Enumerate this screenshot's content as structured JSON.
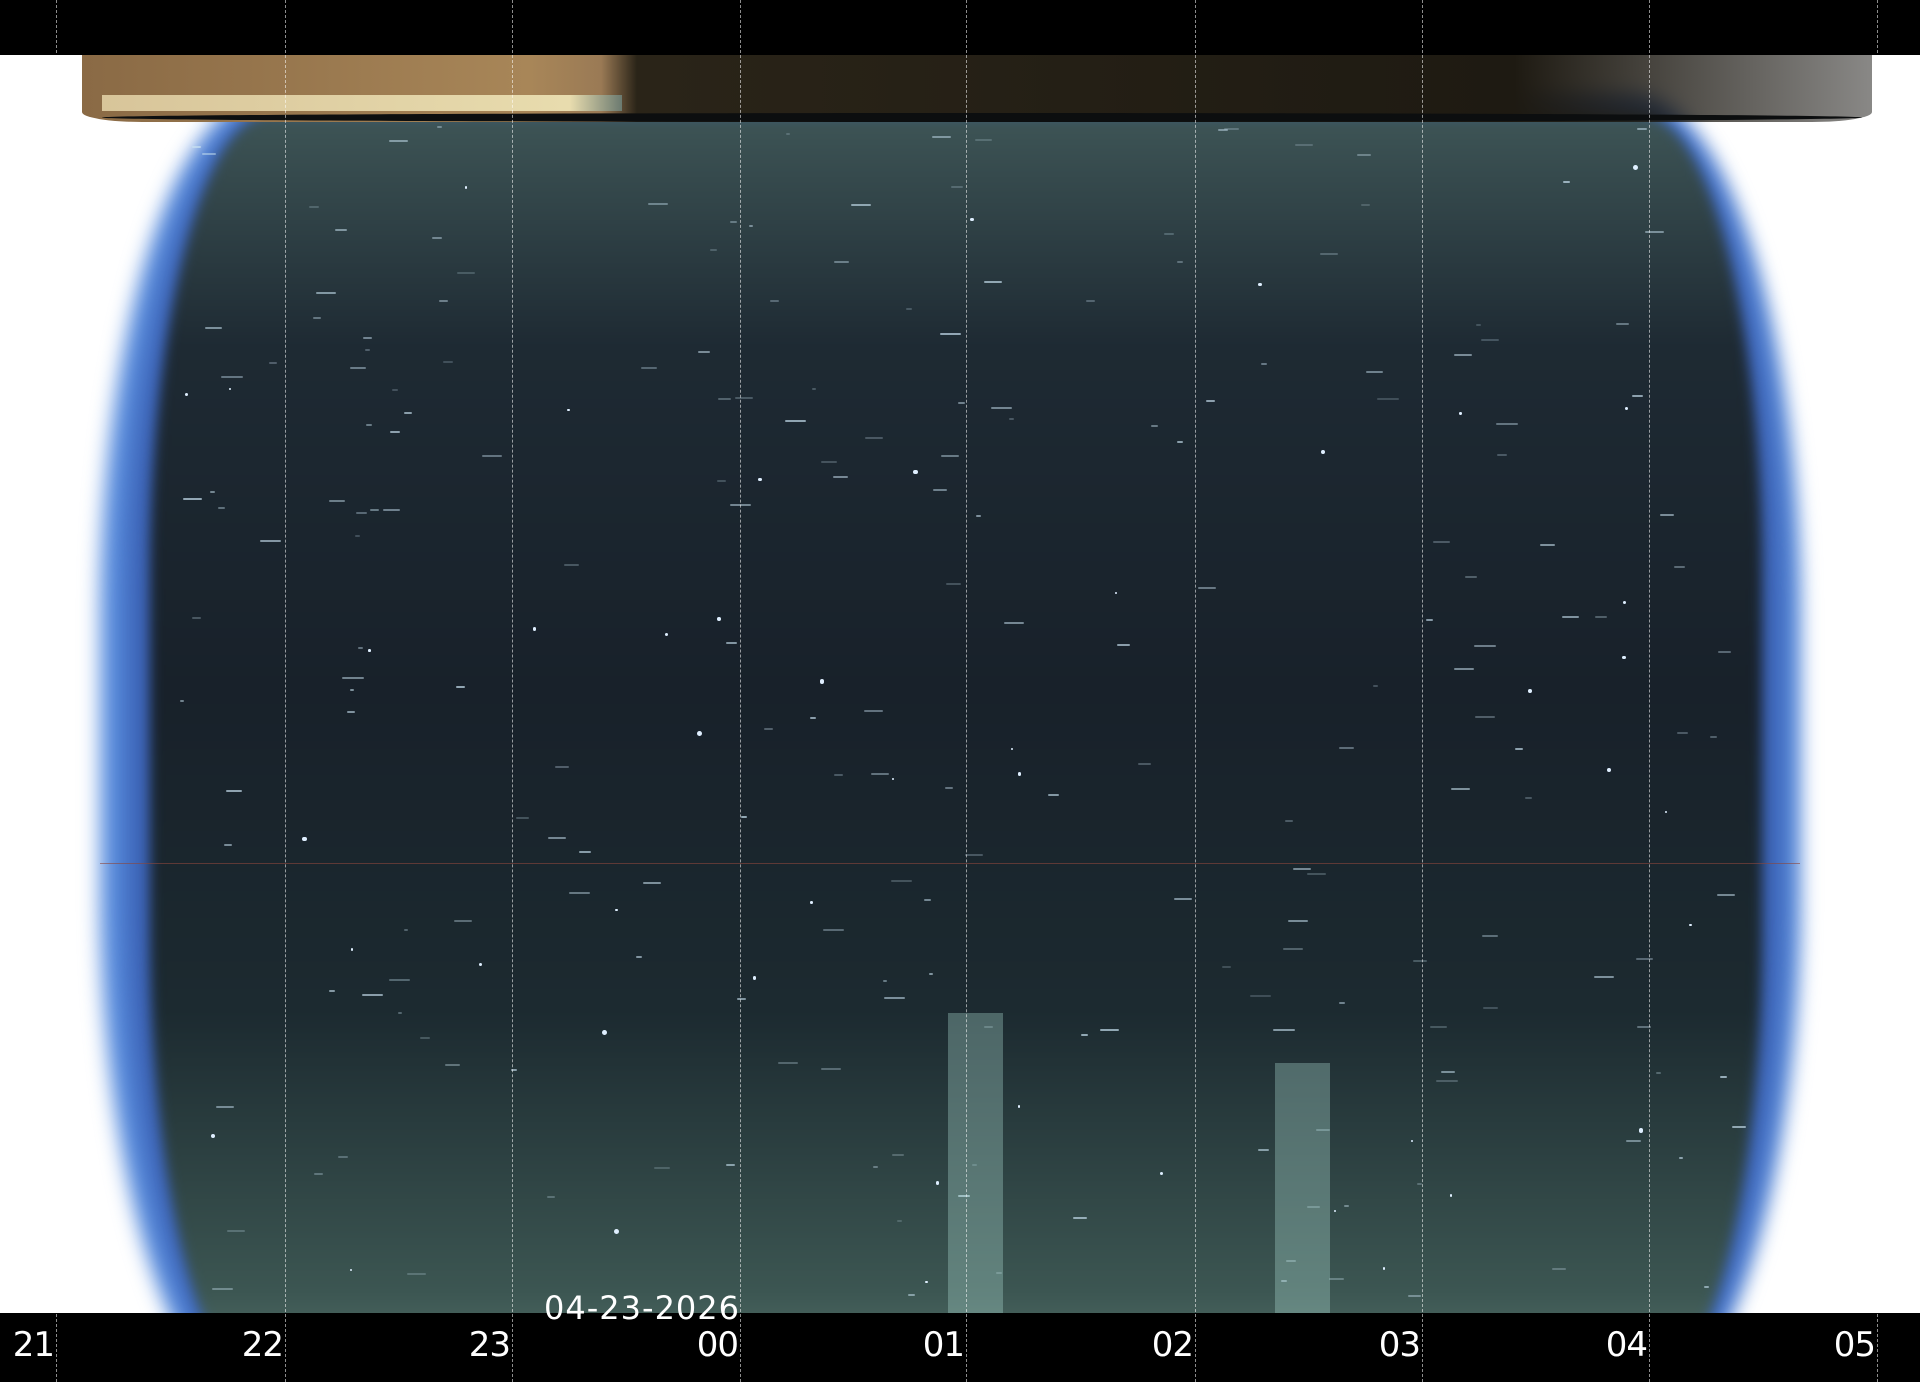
{
  "date_label": "04-23-2026",
  "hour_labels": [
    "21",
    "22",
    "23",
    "00",
    "01",
    "02",
    "03",
    "04",
    "05"
  ],
  "colors": {
    "background": "#000000",
    "sky": "#18212a",
    "edge_glow": "#5a8fe0",
    "twilight_band": "#a88658",
    "label": "#ffffff"
  }
}
